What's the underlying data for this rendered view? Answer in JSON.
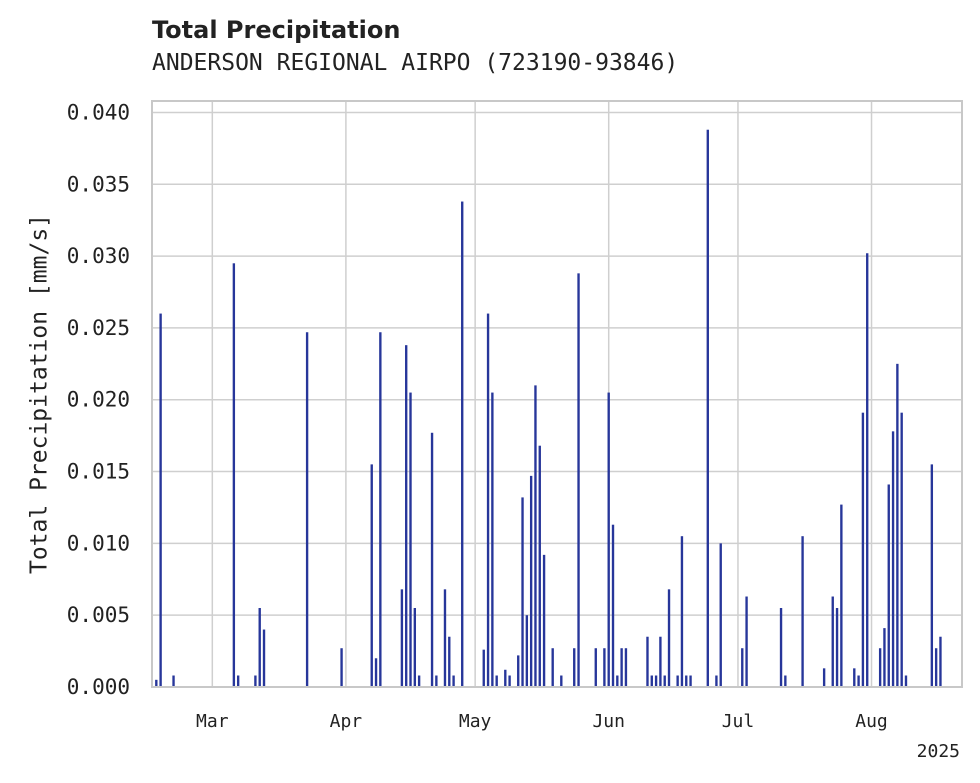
{
  "chart_data": {
    "type": "bar",
    "title": "Total Precipitation",
    "subtitle": "ANDERSON REGIONAL AIRPO (723190-93846)",
    "ylabel": "Total Precipitation [mm/s]",
    "xlabel": "",
    "year_label": "2025",
    "ylim": [
      0,
      0.0408
    ],
    "yticks": [
      "0.000",
      "0.005",
      "0.010",
      "0.015",
      "0.020",
      "0.025",
      "0.030",
      "0.035",
      "0.040"
    ],
    "xlim": [
      "2025-02-15",
      "2025-08-22"
    ],
    "xticks": [
      {
        "date": "2025-03-01",
        "label": "Mar"
      },
      {
        "date": "2025-04-01",
        "label": "Apr"
      },
      {
        "date": "2025-05-01",
        "label": "May"
      },
      {
        "date": "2025-06-01",
        "label": "Jun"
      },
      {
        "date": "2025-07-01",
        "label": "Jul"
      },
      {
        "date": "2025-08-01",
        "label": "Aug"
      }
    ],
    "bar_color": "#27369a",
    "grid": true,
    "points": [
      [
        "2025-02-16",
        0.0005
      ],
      [
        "2025-02-17",
        0.026
      ],
      [
        "2025-02-20",
        0.0008
      ],
      [
        "2025-03-06",
        0.0295
      ],
      [
        "2025-03-07",
        0.0008
      ],
      [
        "2025-03-11",
        0.0008
      ],
      [
        "2025-03-12",
        0.0055
      ],
      [
        "2025-03-13",
        0.004
      ],
      [
        "2025-03-23",
        0.0247
      ],
      [
        "2025-03-31",
        0.0027
      ],
      [
        "2025-04-07",
        0.0155
      ],
      [
        "2025-04-08",
        0.002
      ],
      [
        "2025-04-09",
        0.0247
      ],
      [
        "2025-04-14",
        0.0068
      ],
      [
        "2025-04-15",
        0.0238
      ],
      [
        "2025-04-16",
        0.0205
      ],
      [
        "2025-04-17",
        0.0055
      ],
      [
        "2025-04-18",
        0.0008
      ],
      [
        "2025-04-21",
        0.0177
      ],
      [
        "2025-04-22",
        0.0008
      ],
      [
        "2025-04-24",
        0.0068
      ],
      [
        "2025-04-25",
        0.0035
      ],
      [
        "2025-04-26",
        0.0008
      ],
      [
        "2025-04-28",
        0.0338
      ],
      [
        "2025-05-03",
        0.0026
      ],
      [
        "2025-05-04",
        0.026
      ],
      [
        "2025-05-05",
        0.0205
      ],
      [
        "2025-05-06",
        0.0008
      ],
      [
        "2025-05-08",
        0.0012
      ],
      [
        "2025-05-09",
        0.0008
      ],
      [
        "2025-05-11",
        0.0022
      ],
      [
        "2025-05-12",
        0.0132
      ],
      [
        "2025-05-13",
        0.005
      ],
      [
        "2025-05-14",
        0.0147
      ],
      [
        "2025-05-15",
        0.021
      ],
      [
        "2025-05-16",
        0.0168
      ],
      [
        "2025-05-17",
        0.0092
      ],
      [
        "2025-05-19",
        0.0027
      ],
      [
        "2025-05-21",
        0.0008
      ],
      [
        "2025-05-24",
        0.0027
      ],
      [
        "2025-05-25",
        0.0288
      ],
      [
        "2025-05-29",
        0.0027
      ],
      [
        "2025-05-31",
        0.0027
      ],
      [
        "2025-06-01",
        0.0205
      ],
      [
        "2025-06-02",
        0.0113
      ],
      [
        "2025-06-03",
        0.0008
      ],
      [
        "2025-06-04",
        0.0027
      ],
      [
        "2025-06-05",
        0.0027
      ],
      [
        "2025-06-10",
        0.0035
      ],
      [
        "2025-06-11",
        0.0008
      ],
      [
        "2025-06-12",
        0.0008
      ],
      [
        "2025-06-13",
        0.0035
      ],
      [
        "2025-06-14",
        0.0008
      ],
      [
        "2025-06-15",
        0.0068
      ],
      [
        "2025-06-17",
        0.0008
      ],
      [
        "2025-06-18",
        0.0105
      ],
      [
        "2025-06-19",
        0.0008
      ],
      [
        "2025-06-20",
        0.0008
      ],
      [
        "2025-06-24",
        0.0388
      ],
      [
        "2025-06-26",
        0.0008
      ],
      [
        "2025-06-27",
        0.01
      ],
      [
        "2025-07-02",
        0.0027
      ],
      [
        "2025-07-03",
        0.0063
      ],
      [
        "2025-07-11",
        0.0055
      ],
      [
        "2025-07-12",
        0.0008
      ],
      [
        "2025-07-16",
        0.0105
      ],
      [
        "2025-07-21",
        0.0013
      ],
      [
        "2025-07-23",
        0.0063
      ],
      [
        "2025-07-24",
        0.0055
      ],
      [
        "2025-07-25",
        0.0127
      ],
      [
        "2025-07-28",
        0.0013
      ],
      [
        "2025-07-29",
        0.0008
      ],
      [
        "2025-07-30",
        0.0191
      ],
      [
        "2025-07-31",
        0.0302
      ],
      [
        "2025-08-03",
        0.0027
      ],
      [
        "2025-08-04",
        0.0041
      ],
      [
        "2025-08-05",
        0.0141
      ],
      [
        "2025-08-06",
        0.0178
      ],
      [
        "2025-08-07",
        0.0225
      ],
      [
        "2025-08-08",
        0.0191
      ],
      [
        "2025-08-09",
        0.0008
      ],
      [
        "2025-08-15",
        0.0155
      ],
      [
        "2025-08-16",
        0.0027
      ],
      [
        "2025-08-17",
        0.0035
      ]
    ]
  }
}
